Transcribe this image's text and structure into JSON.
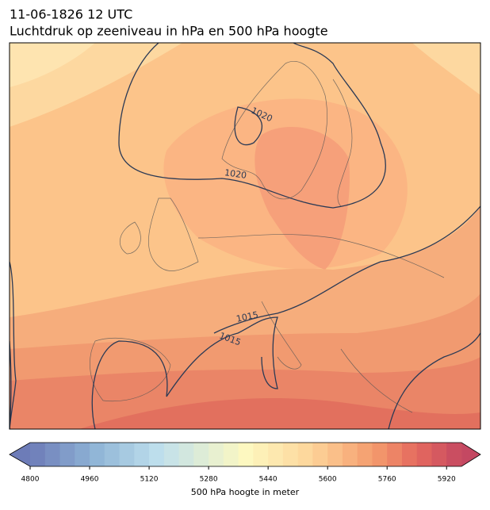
{
  "title": {
    "line1": "11-06-1826 12 UTC",
    "line2": "Luchtdruk op zeeniveau in hPa en 500 hPa hoogte"
  },
  "map": {
    "contour_labels": [
      "1020",
      "1020",
      "1015",
      "1015"
    ]
  },
  "colorbar": {
    "label": "500 hPa hoogte in meter",
    "lim": [
      4800,
      5960
    ],
    "ticks": [
      4800,
      4960,
      5120,
      5280,
      5440,
      5600,
      5760,
      5920
    ]
  }
}
